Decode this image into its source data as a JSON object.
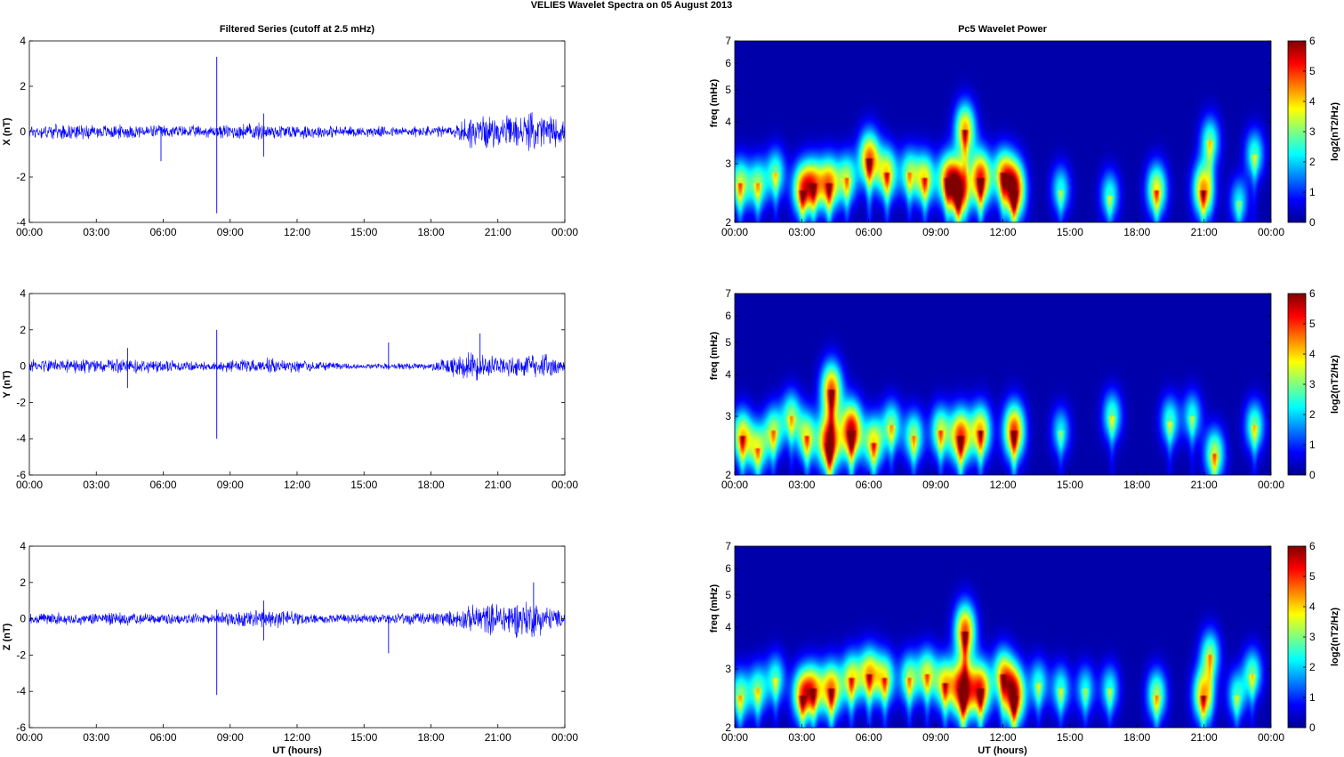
{
  "figure": {
    "title": "VELIES Wavelet Spectra on 05 August    2013",
    "left_title": "Filtered Series (cutoff at 2.5 mHz)",
    "right_title": "Pc5 Wavelet Power",
    "xlabel": "UT (hours)",
    "x_ticks": [
      "00:00",
      "03:00",
      "06:00",
      "09:00",
      "12:00",
      "15:00",
      "18:00",
      "21:00",
      "00:00"
    ],
    "freq_label": "freq (mHz)",
    "freq_ticks": [
      "2",
      "3",
      "4",
      "5",
      "6",
      "7"
    ],
    "colorbar_label": "log2(nT2/Hz)",
    "colorbar_ticks": [
      "0",
      "1",
      "2",
      "3",
      "4",
      "5",
      "6"
    ],
    "line_color": "#0000ff",
    "background_color": "#00008f"
  },
  "chart_data": [
    {
      "type": "line",
      "ylabel": "X (nT)",
      "ylim": [
        -4,
        4
      ],
      "y_ticks": [
        "4",
        "2",
        "0",
        "-2",
        "-4"
      ],
      "x_unit": "UT hours",
      "xlim": [
        0,
        24
      ],
      "series": [
        {
          "noise_envelope_nT": [
            {
              "x": 0,
              "amp": 0.35
            },
            {
              "x": 4,
              "amp": 0.35
            },
            {
              "x": 8,
              "amp": 0.3
            },
            {
              "x": 10,
              "amp": 0.45
            },
            {
              "x": 11,
              "amp": 0.4
            },
            {
              "x": 15,
              "amp": 0.25
            },
            {
              "x": 19,
              "amp": 0.3
            },
            {
              "x": 19.8,
              "amp": 0.9
            },
            {
              "x": 21,
              "amp": 0.7
            },
            {
              "x": 23,
              "amp": 1.0
            },
            {
              "x": 24,
              "amp": 0.5
            }
          ],
          "spikes": [
            {
              "x": 8.4,
              "y_max": 3.3,
              "y_min": -3.6
            },
            {
              "x": 5.9,
              "y_max": 0.2,
              "y_min": -1.3
            },
            {
              "x": 10.5,
              "y_max": 0.8,
              "y_min": -1.1
            }
          ]
        }
      ]
    },
    {
      "type": "line",
      "ylabel": "Y (nT)",
      "ylim": [
        -6,
        4
      ],
      "y_ticks": [
        "4",
        "2",
        "0",
        "-2",
        "-4",
        "-6"
      ],
      "x_unit": "UT hours",
      "xlim": [
        0,
        24
      ],
      "series": [
        {
          "noise_envelope_nT": [
            {
              "x": 0,
              "amp": 0.4
            },
            {
              "x": 4,
              "amp": 0.45
            },
            {
              "x": 8,
              "amp": 0.3
            },
            {
              "x": 10.5,
              "amp": 0.5
            },
            {
              "x": 13,
              "amp": 0.3
            },
            {
              "x": 15,
              "amp": 0.15
            },
            {
              "x": 18,
              "amp": 0.25
            },
            {
              "x": 19.8,
              "amp": 0.9
            },
            {
              "x": 21,
              "amp": 0.6
            },
            {
              "x": 23,
              "amp": 0.8
            },
            {
              "x": 24,
              "amp": 0.4
            }
          ],
          "spikes": [
            {
              "x": 8.4,
              "y_max": 2.0,
              "y_min": -4.0
            },
            {
              "x": 4.4,
              "y_max": 1.0,
              "y_min": -1.2
            },
            {
              "x": 16.1,
              "y_max": 1.3,
              "y_min": -0.2
            },
            {
              "x": 20.2,
              "y_max": 1.8,
              "y_min": -0.3
            }
          ]
        }
      ]
    },
    {
      "type": "line",
      "ylabel": "Z (nT)",
      "ylim": [
        -6,
        4
      ],
      "y_ticks": [
        "4",
        "2",
        "0",
        "-2",
        "-4",
        "-6"
      ],
      "x_unit": "UT hours",
      "xlim": [
        0,
        24
      ],
      "series": [
        {
          "noise_envelope_nT": [
            {
              "x": 0,
              "amp": 0.35
            },
            {
              "x": 4,
              "amp": 0.4
            },
            {
              "x": 8,
              "amp": 0.3
            },
            {
              "x": 10.5,
              "amp": 0.6
            },
            {
              "x": 13,
              "amp": 0.3
            },
            {
              "x": 16,
              "amp": 0.3
            },
            {
              "x": 19,
              "amp": 0.5
            },
            {
              "x": 20,
              "amp": 0.9
            },
            {
              "x": 22.5,
              "amp": 1.2
            },
            {
              "x": 24,
              "amp": 0.4
            }
          ],
          "spikes": [
            {
              "x": 8.4,
              "y_max": 0.5,
              "y_min": -4.2
            },
            {
              "x": 16.1,
              "y_max": 0.1,
              "y_min": -1.9
            },
            {
              "x": 22.6,
              "y_max": 2.0,
              "y_min": -0.5
            },
            {
              "x": 10.5,
              "y_max": 1.0,
              "y_min": -1.2
            }
          ]
        }
      ]
    },
    {
      "type": "heatmap",
      "xlabel": "",
      "ylabel": "freq (mHz)",
      "xlim": [
        0,
        24
      ],
      "ylim": [
        2,
        7
      ],
      "y_scale": "log",
      "colorbar": {
        "label": "log2(nT2/Hz)",
        "range": [
          0,
          6
        ]
      },
      "blobs": [
        {
          "t": 0.2,
          "f": 2.6,
          "p": 3.2
        },
        {
          "t": 1.0,
          "f": 2.6,
          "p": 2.8
        },
        {
          "t": 1.8,
          "f": 2.8,
          "p": 2.6
        },
        {
          "t": 3.0,
          "f": 2.5,
          "p": 4.0
        },
        {
          "t": 3.5,
          "f": 2.6,
          "p": 3.5
        },
        {
          "t": 4.2,
          "f": 2.6,
          "p": 4.2
        },
        {
          "t": 5.0,
          "f": 2.7,
          "p": 3.0
        },
        {
          "t": 6.0,
          "f": 3.1,
          "p": 4.5
        },
        {
          "t": 6.8,
          "f": 2.8,
          "p": 3.6
        },
        {
          "t": 7.8,
          "f": 2.8,
          "p": 2.8
        },
        {
          "t": 8.5,
          "f": 2.7,
          "p": 3.5
        },
        {
          "t": 9.5,
          "f": 2.7,
          "p": 3.6
        },
        {
          "t": 10.0,
          "f": 2.5,
          "p": 5.6
        },
        {
          "t": 10.3,
          "f": 3.8,
          "p": 4.0
        },
        {
          "t": 11.0,
          "f": 2.7,
          "p": 5.0
        },
        {
          "t": 12.0,
          "f": 2.8,
          "p": 3.3
        },
        {
          "t": 12.5,
          "f": 2.5,
          "p": 5.6
        },
        {
          "t": 14.6,
          "f": 2.5,
          "p": 2.2
        },
        {
          "t": 16.8,
          "f": 2.4,
          "p": 2.3
        },
        {
          "t": 18.9,
          "f": 2.5,
          "p": 3.5
        },
        {
          "t": 21.0,
          "f": 2.5,
          "p": 4.2
        },
        {
          "t": 21.3,
          "f": 3.5,
          "p": 2.6
        },
        {
          "t": 22.6,
          "f": 2.3,
          "p": 2.0
        },
        {
          "t": 23.3,
          "f": 3.2,
          "p": 2.4
        }
      ]
    },
    {
      "type": "heatmap",
      "xlabel": "",
      "ylabel": "freq (mHz)",
      "xlim": [
        0,
        24
      ],
      "ylim": [
        2,
        7
      ],
      "y_scale": "log",
      "colorbar": {
        "label": "log2(nT2/Hz)",
        "range": [
          0,
          6
        ]
      },
      "blobs": [
        {
          "t": 0.3,
          "f": 2.6,
          "p": 3.8
        },
        {
          "t": 1.0,
          "f": 2.4,
          "p": 3.0
        },
        {
          "t": 1.7,
          "f": 2.7,
          "p": 3.0
        },
        {
          "t": 2.5,
          "f": 3.0,
          "p": 2.8
        },
        {
          "t": 3.2,
          "f": 2.6,
          "p": 3.3
        },
        {
          "t": 4.2,
          "f": 2.5,
          "p": 5.5
        },
        {
          "t": 4.3,
          "f": 3.6,
          "p": 4.5
        },
        {
          "t": 5.2,
          "f": 2.7,
          "p": 5.5
        },
        {
          "t": 6.2,
          "f": 2.5,
          "p": 3.6
        },
        {
          "t": 7.0,
          "f": 2.8,
          "p": 2.8
        },
        {
          "t": 8.0,
          "f": 2.6,
          "p": 3.0
        },
        {
          "t": 9.2,
          "f": 2.7,
          "p": 3.2
        },
        {
          "t": 10.1,
          "f": 2.6,
          "p": 4.8
        },
        {
          "t": 11.0,
          "f": 2.7,
          "p": 4.0
        },
        {
          "t": 12.5,
          "f": 2.7,
          "p": 4.8
        },
        {
          "t": 14.6,
          "f": 2.7,
          "p": 2.0
        },
        {
          "t": 16.9,
          "f": 3.0,
          "p": 2.5
        },
        {
          "t": 19.5,
          "f": 2.9,
          "p": 2.4
        },
        {
          "t": 20.5,
          "f": 3.0,
          "p": 2.2
        },
        {
          "t": 21.5,
          "f": 2.3,
          "p": 3.2
        },
        {
          "t": 23.3,
          "f": 2.8,
          "p": 2.7
        }
      ]
    },
    {
      "type": "heatmap",
      "xlabel": "UT (hours)",
      "ylabel": "freq (mHz)",
      "xlim": [
        0,
        24
      ],
      "ylim": [
        2,
        7
      ],
      "y_scale": "log",
      "colorbar": {
        "label": "log2(nT2/Hz)",
        "range": [
          0,
          6
        ]
      },
      "blobs": [
        {
          "t": 0.2,
          "f": 2.5,
          "p": 2.8
        },
        {
          "t": 1.0,
          "f": 2.6,
          "p": 2.6
        },
        {
          "t": 1.8,
          "f": 2.8,
          "p": 2.4
        },
        {
          "t": 3.0,
          "f": 2.5,
          "p": 4.0
        },
        {
          "t": 3.5,
          "f": 2.6,
          "p": 3.5
        },
        {
          "t": 4.3,
          "f": 2.6,
          "p": 4.3
        },
        {
          "t": 5.2,
          "f": 2.8,
          "p": 3.5
        },
        {
          "t": 6.0,
          "f": 2.9,
          "p": 3.8
        },
        {
          "t": 6.7,
          "f": 2.8,
          "p": 3.3
        },
        {
          "t": 7.8,
          "f": 2.8,
          "p": 3.0
        },
        {
          "t": 8.6,
          "f": 2.9,
          "p": 3.2
        },
        {
          "t": 9.4,
          "f": 2.7,
          "p": 3.6
        },
        {
          "t": 10.2,
          "f": 2.6,
          "p": 5.7
        },
        {
          "t": 10.3,
          "f": 3.9,
          "p": 4.6
        },
        {
          "t": 11.0,
          "f": 2.6,
          "p": 4.7
        },
        {
          "t": 12.0,
          "f": 2.9,
          "p": 3.4
        },
        {
          "t": 12.5,
          "f": 2.5,
          "p": 5.5
        },
        {
          "t": 13.6,
          "f": 2.7,
          "p": 2.3
        },
        {
          "t": 14.6,
          "f": 2.6,
          "p": 2.3
        },
        {
          "t": 15.7,
          "f": 2.6,
          "p": 2.1
        },
        {
          "t": 16.8,
          "f": 2.6,
          "p": 2.2
        },
        {
          "t": 18.9,
          "f": 2.5,
          "p": 3.0
        },
        {
          "t": 21.0,
          "f": 2.5,
          "p": 4.0
        },
        {
          "t": 21.3,
          "f": 3.3,
          "p": 2.8
        },
        {
          "t": 22.5,
          "f": 2.5,
          "p": 2.3
        },
        {
          "t": 23.2,
          "f": 2.9,
          "p": 2.6
        }
      ]
    }
  ]
}
